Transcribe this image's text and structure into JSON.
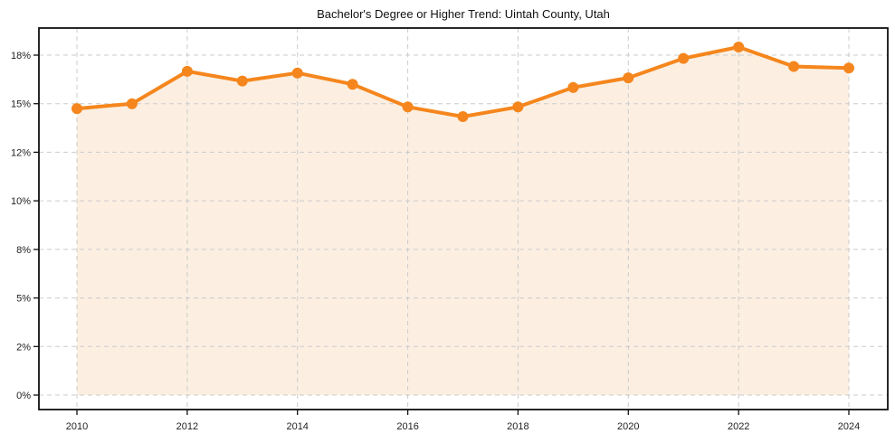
{
  "page": {
    "background": "#ffffff"
  },
  "chart_data": {
    "type": "area",
    "title": "Bachelor's Degree or Higher Trend: Uintah County, Utah",
    "xlabel": "",
    "ylabel": "",
    "x": [
      2010,
      2011,
      2012,
      2013,
      2014,
      2015,
      2016,
      2017,
      2018,
      2019,
      2020,
      2021,
      2022,
      2023,
      2024
    ],
    "values": [
      14.7,
      15.0,
      17.0,
      16.4,
      16.9,
      16.2,
      14.8,
      14.2,
      14.8,
      16.0,
      16.6,
      17.8,
      18.5,
      17.3,
      17.2
    ],
    "unit": "%",
    "xticks": [
      "2010",
      "2012",
      "2014",
      "2016",
      "2018",
      "2020",
      "2022",
      "2024"
    ],
    "ytick_labels": [
      "18%",
      "15%",
      "12%",
      "10%",
      "8%",
      "5%",
      "2%",
      "0%"
    ],
    "grid": true,
    "legend": false,
    "colors": {
      "line": "#f5861d",
      "marker": "#f5861d",
      "area_fill": "#fcefe2",
      "grid": "#cbcbcb",
      "axis": "#111111",
      "text": "#222222"
    }
  }
}
